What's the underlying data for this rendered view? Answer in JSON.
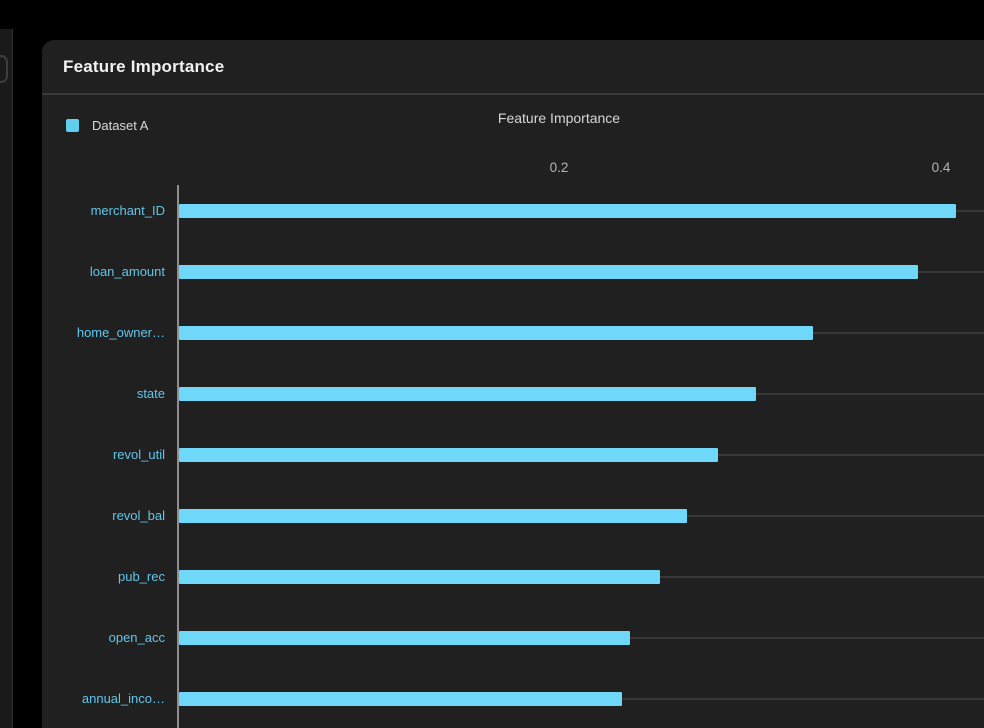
{
  "panel": {
    "title": "Feature Importance"
  },
  "legend": {
    "items": [
      {
        "label": "Dataset A",
        "color": "#5fceee"
      }
    ]
  },
  "chart_data": {
    "type": "bar",
    "orientation": "horizontal",
    "title": "Feature Importance",
    "categories": [
      "merchant_ID",
      "loan_amount",
      "home_owner…",
      "state",
      "revol_util",
      "revol_bal",
      "pub_rec",
      "open_acc",
      "annual_inco…"
    ],
    "series": [
      {
        "name": "Dataset A",
        "color": "#6fd8f9",
        "values": [
          0.407,
          0.387,
          0.332,
          0.302,
          0.282,
          0.266,
          0.252,
          0.236,
          0.232
        ]
      }
    ],
    "xticks": [
      0.2,
      0.4
    ],
    "xlim": [
      0,
      0.42
    ],
    "xlabel": "",
    "ylabel": "",
    "grid": "horizontal-row-lines",
    "legend_position": "top-left",
    "category_label_color": "#63c5e8",
    "tick_label_color": "#b5b5b5"
  }
}
